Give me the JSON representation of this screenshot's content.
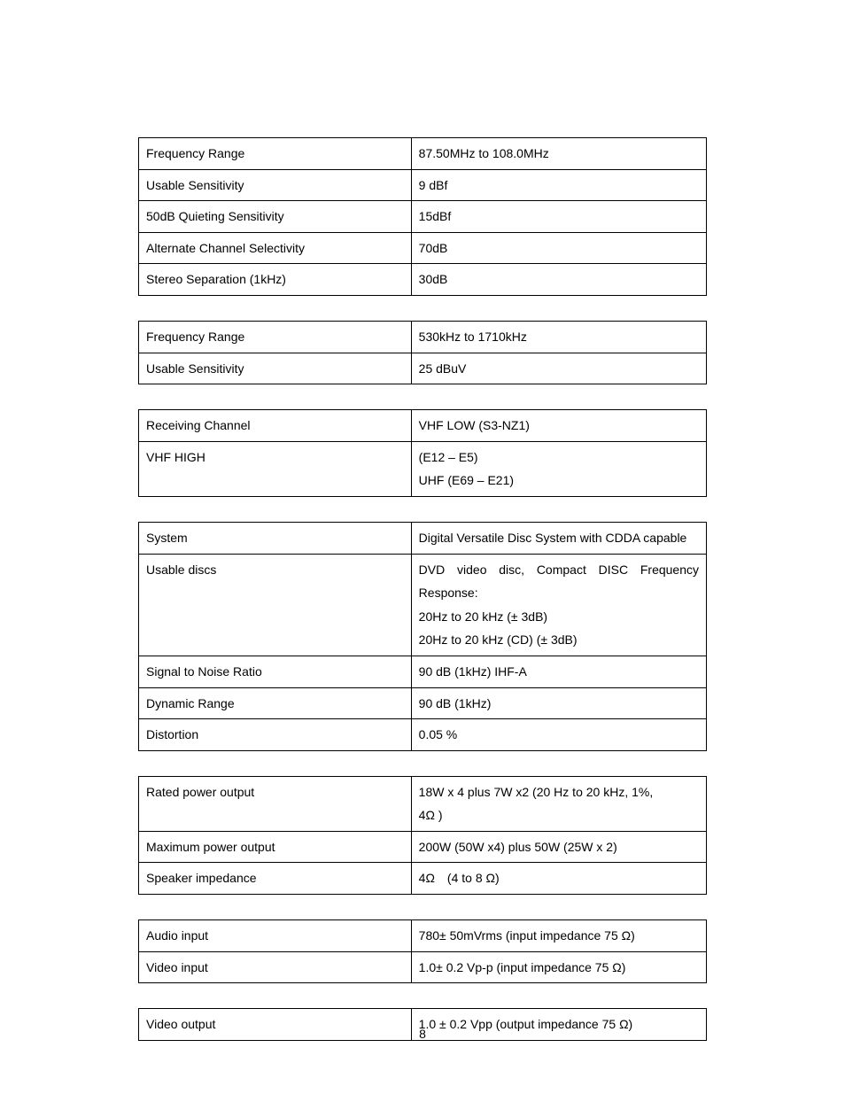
{
  "page_number": "8",
  "tables": {
    "fm_tuner": [
      {
        "label": "Frequency Range",
        "value": "87.50MHz to 108.0MHz"
      },
      {
        "label": "Usable Sensitivity",
        "value": "9 dBf"
      },
      {
        "label": "50dB Quieting Sensitivity",
        "value": "15dBf"
      },
      {
        "label": "Alternate Channel Selectivity",
        "value": "70dB"
      },
      {
        "label": "Stereo Separation (1kHz)",
        "value": "30dB"
      }
    ],
    "am_tuner": [
      {
        "label": "Frequency Range",
        "value": "530kHz to 1710kHz"
      },
      {
        "label": "Usable Sensitivity",
        "value": "25 dBuV"
      }
    ],
    "tv_tuner": [
      {
        "label": "Receiving Channel",
        "value": "VHF LOW (S3-NZ1)"
      },
      {
        "label": "VHF HIGH",
        "values": [
          "(E12 – E5)",
          "UHF (E69 – E21)"
        ]
      }
    ],
    "dvd": [
      {
        "label": "System",
        "value": "Digital Versatile Disc System with CDDA capable",
        "justify": true
      },
      {
        "label": "Usable discs",
        "values": [
          "DVD video disc, Compact DISC Frequency Response:",
          "20Hz to 20 kHz (± 3dB)",
          "20Hz to 20 kHz (CD) (± 3dB)"
        ],
        "justify_first": true
      },
      {
        "label": "Signal to Noise Ratio",
        "value": "90 dB (1kHz) IHF-A"
      },
      {
        "label": "Dynamic Range",
        "value": "90 dB (1kHz)"
      },
      {
        "label": "Distortion",
        "value": "0.05 %"
      }
    ],
    "amplifier": [
      {
        "label": "Rated power output",
        "values": [
          "18W x 4 plus 7W x2 (20 Hz to 20 kHz, 1%,",
          "4Ω )"
        ]
      },
      {
        "label": "Maximum power output",
        "value": "200W (50W x4) plus 50W (25W x 2)"
      },
      {
        "label": "Speaker impedance",
        "value": "4Ω　(4 to 8 Ω)"
      }
    ],
    "input": [
      {
        "label": "Audio input",
        "value": "780± 50mVrms (input impedance 75 Ω)"
      },
      {
        "label": "Video input",
        "value": "1.0± 0.2 Vp-p (input impedance 75 Ω)"
      }
    ],
    "output": [
      {
        "label": "Video output",
        "value": "1.0 ± 0.2 Vpp (output impedance 75 Ω)"
      }
    ]
  }
}
